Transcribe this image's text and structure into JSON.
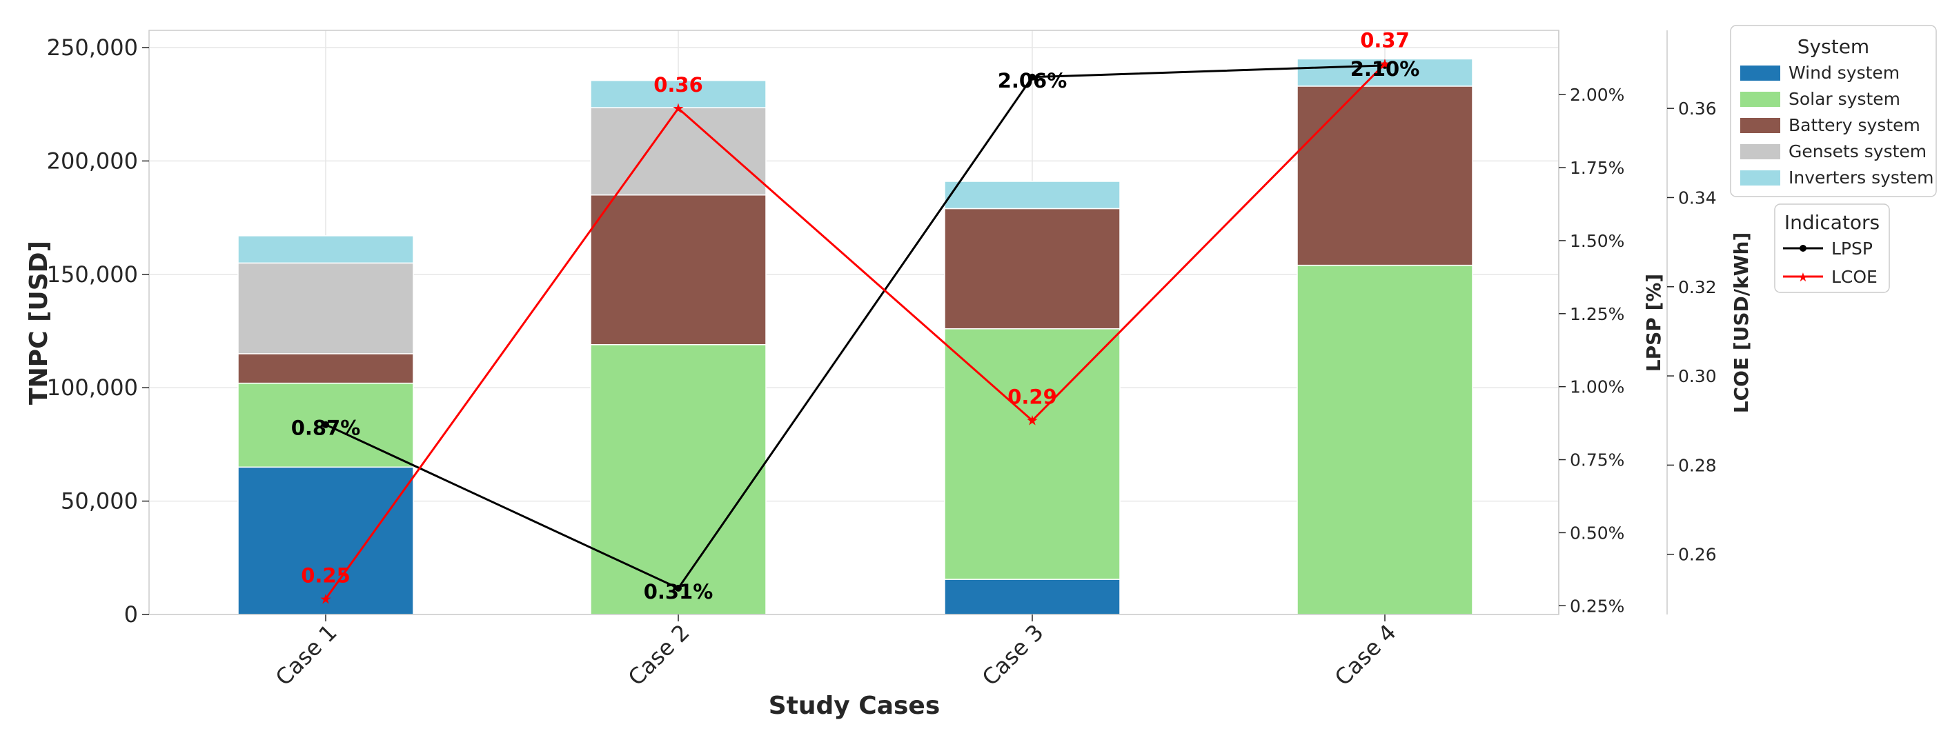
{
  "chart_data": {
    "type": "bar",
    "stacked": true,
    "title": "",
    "xlabel": "Study Cases",
    "ylabel": "TNPC [USD]",
    "ylim": [
      0,
      260000
    ],
    "yticks": [
      "0",
      "50,000",
      "100,000",
      "150,000",
      "200,000",
      "250,000"
    ],
    "categories": [
      "Case 1",
      "Case 2",
      "Case 3",
      "Case 4"
    ],
    "colors": {
      "Wind system": "#1f77b4",
      "Solar system": "#98df8a",
      "Battery system": "#8c564b",
      "Gensets system": "#c7c7c7",
      "Inverters system": "#9edae5",
      "LPSP": "#000000",
      "LCOE": "#ff0000"
    },
    "series": [
      {
        "name": "Wind system",
        "values": [
          65000,
          0,
          15500,
          0
        ]
      },
      {
        "name": "Solar system",
        "values": [
          37000,
          119000,
          110500,
          154000
        ]
      },
      {
        "name": "Battery system",
        "values": [
          13000,
          66000,
          53000,
          79000
        ]
      },
      {
        "name": "Gensets system",
        "values": [
          40000,
          38500,
          0,
          0
        ]
      },
      {
        "name": "Inverters system",
        "values": [
          12000,
          12000,
          12000,
          12000
        ]
      }
    ],
    "lpsp": {
      "axis_label": "LPSP [%]",
      "ylim": [
        0.22,
        2.22
      ],
      "yticks": [
        "0.25%",
        "0.50%",
        "0.75%",
        "1.00%",
        "1.25%",
        "1.50%",
        "1.75%",
        "2.00%"
      ],
      "values": [
        0.87,
        0.31,
        2.06,
        2.1
      ],
      "labels": [
        "0.87%",
        "0.31%",
        "2.06%",
        "2.10%"
      ]
    },
    "lcoe": {
      "axis_label": "LCOE [USD/kWh]",
      "ylim": [
        0.2465,
        0.3775
      ],
      "yticks": [
        "0.26",
        "0.28",
        "0.30",
        "0.32",
        "0.34",
        "0.36"
      ],
      "values": [
        0.25,
        0.36,
        0.29,
        0.37
      ],
      "labels": [
        "0.25",
        "0.36",
        "0.29",
        "0.37"
      ]
    },
    "legend_system": {
      "title": "System",
      "items": [
        "Wind system",
        "Solar system",
        "Battery system",
        "Gensets system",
        "Inverters system"
      ]
    },
    "legend_indicators": {
      "title": "Indicators",
      "items": [
        "LPSP",
        "LCOE"
      ]
    }
  }
}
